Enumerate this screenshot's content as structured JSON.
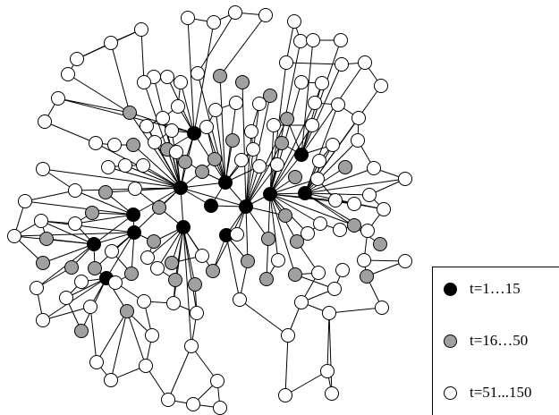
{
  "colors": {
    "early": "#000000",
    "middle": "#a0a0a0",
    "late": "#ffffff",
    "edge": "#000000",
    "background": "#ffffff"
  },
  "legend": {
    "items": [
      {
        "label": "t=1…15",
        "color": "#000000"
      },
      {
        "label": "t=16…50",
        "color": "#a0a0a0"
      },
      {
        "label": "t=51...150",
        "color": "#ffffff"
      }
    ]
  }
}
